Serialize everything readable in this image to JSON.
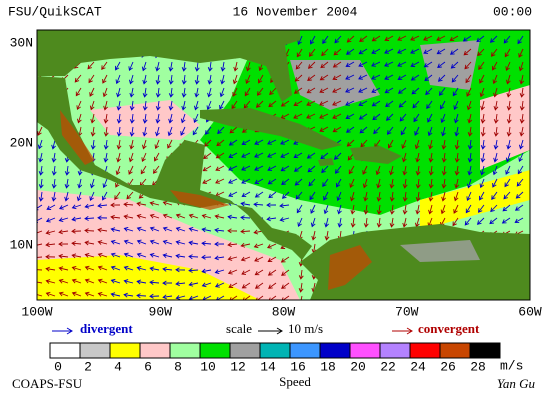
{
  "header": {
    "source": "FSU/QuikSCAT",
    "date": "16 November 2004",
    "time": "00:00"
  },
  "map": {
    "lat_labels": [
      "30N",
      "20N",
      "10N"
    ],
    "lon_labels": [
      "100W",
      "90W",
      "80W",
      "70W",
      "60W"
    ]
  },
  "legend": {
    "divergent": "divergent",
    "scale": "scale",
    "scale_value": "10 m/s",
    "convergent": "convergent"
  },
  "colorbar": {
    "labels": [
      "0",
      "2",
      "4",
      "6",
      "8",
      "10",
      "12",
      "14",
      "16",
      "18",
      "20",
      "22",
      "24",
      "26",
      "28"
    ],
    "colors": [
      "#ffffff",
      "#c8c8c8",
      "#ffff00",
      "#ffc8c8",
      "#a0ffa0",
      "#00e000",
      "#a0a0a0",
      "#00b4b4",
      "#3c96ff",
      "#0000c8",
      "#ff50ff",
      "#b482ff",
      "#ff0000",
      "#c84600",
      "#000000"
    ],
    "unit": "m/s",
    "title": "Speed"
  },
  "footer": {
    "org": "COAPS-FSU",
    "author": "Yan Gu"
  }
}
